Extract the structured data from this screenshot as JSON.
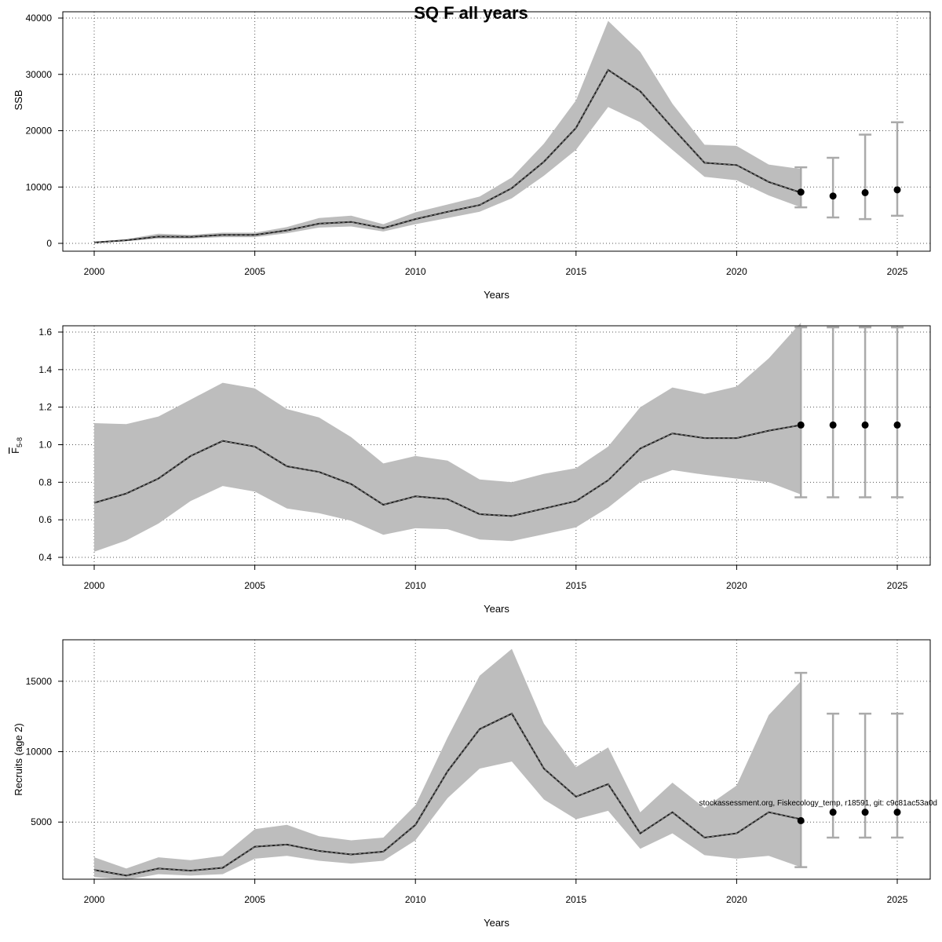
{
  "title": "SQ F all years",
  "footnote": "stockassessment.org, Fiskecology_temp, r18591, git: c9c81ac53a0d",
  "chart_data": [
    {
      "type": "line",
      "ylabel": "SSB",
      "xlabel": "Years",
      "xlim": [
        2000,
        2025
      ],
      "xticks": [
        2000,
        2005,
        2010,
        2015,
        2020,
        2025
      ],
      "ylim": [
        0,
        40000
      ],
      "yticks": [
        0,
        10000,
        20000,
        30000,
        40000
      ],
      "grid": true,
      "x": [
        2000,
        2001,
        2002,
        2003,
        2004,
        2005,
        2006,
        2007,
        2008,
        2009,
        2010,
        2011,
        2012,
        2013,
        2014,
        2015,
        2016,
        2017,
        2018,
        2019,
        2020,
        2021,
        2022
      ],
      "estimate": [
        150,
        550,
        1200,
        1150,
        1500,
        1500,
        2300,
        3500,
        3800,
        2700,
        4300,
        5600,
        6800,
        9800,
        14500,
        20500,
        30800,
        27000,
        20500,
        14300,
        13900,
        10900,
        9000
      ],
      "lower": [
        100,
        400,
        850,
        850,
        1100,
        1100,
        1800,
        2800,
        3000,
        2100,
        3400,
        4500,
        5600,
        8000,
        12000,
        16600,
        24200,
        21500,
        16600,
        11800,
        11200,
        8500,
        6400
      ],
      "upper": [
        250,
        750,
        1700,
        1500,
        1900,
        1900,
        2900,
        4500,
        4900,
        3400,
        5500,
        6900,
        8300,
        11700,
        17700,
        25400,
        39500,
        34000,
        24800,
        17500,
        17300,
        14000,
        13200
      ],
      "forecast": {
        "x": [
          2022,
          2023,
          2024,
          2025
        ],
        "median": [
          9100,
          8400,
          9000,
          9500
        ],
        "lower": [
          6400,
          4600,
          4300,
          4900
        ],
        "upper": [
          13500,
          15200,
          19300,
          21500
        ]
      }
    },
    {
      "type": "line",
      "ylabel_main": "F",
      "ylabel_sub": "5-8",
      "xlabel": "Years",
      "xlim": [
        2000,
        2025
      ],
      "xticks": [
        2000,
        2005,
        2010,
        2015,
        2020,
        2025
      ],
      "ylim": [
        0.4,
        1.6
      ],
      "yticks": [
        0.4,
        0.6,
        0.8,
        1.0,
        1.2,
        1.4,
        1.6
      ],
      "ytick_decimals": 1,
      "grid": true,
      "x": [
        2000,
        2001,
        2002,
        2003,
        2004,
        2005,
        2006,
        2007,
        2008,
        2009,
        2010,
        2011,
        2012,
        2013,
        2014,
        2015,
        2016,
        2017,
        2018,
        2019,
        2020,
        2021,
        2022
      ],
      "estimate": [
        0.69,
        0.74,
        0.82,
        0.94,
        1.02,
        0.99,
        0.885,
        0.855,
        0.79,
        0.68,
        0.725,
        0.71,
        0.63,
        0.62,
        0.66,
        0.7,
        0.81,
        0.98,
        1.06,
        1.035,
        1.035,
        1.075,
        1.105
      ],
      "lower": [
        0.43,
        0.49,
        0.58,
        0.7,
        0.78,
        0.75,
        0.66,
        0.635,
        0.595,
        0.52,
        0.555,
        0.55,
        0.495,
        0.487,
        0.523,
        0.56,
        0.665,
        0.8,
        0.865,
        0.84,
        0.82,
        0.8,
        0.735
      ],
      "upper": [
        1.115,
        1.11,
        1.15,
        1.24,
        1.33,
        1.3,
        1.19,
        1.145,
        1.04,
        0.9,
        0.94,
        0.915,
        0.815,
        0.8,
        0.845,
        0.875,
        0.99,
        1.2,
        1.305,
        1.27,
        1.31,
        1.46,
        1.65
      ],
      "forecast": {
        "x": [
          2022,
          2023,
          2024,
          2025
        ],
        "median": [
          1.105,
          1.105,
          1.105,
          1.105
        ],
        "lower": [
          0.72,
          0.72,
          0.72,
          0.72
        ],
        "upper": [
          1.625,
          1.625,
          1.625,
          1.625
        ]
      }
    },
    {
      "type": "line",
      "ylabel": "Recruits (age 2)",
      "xlabel": "Years",
      "xlim": [
        2000,
        2025
      ],
      "xticks": [
        2000,
        2005,
        2010,
        2015,
        2020,
        2025
      ],
      "ylim": [
        1500,
        17500
      ],
      "yticks": [
        5000,
        10000,
        15000
      ],
      "grid": true,
      "x": [
        2000,
        2001,
        2002,
        2003,
        2004,
        2005,
        2006,
        2007,
        2008,
        2009,
        2010,
        2011,
        2012,
        2013,
        2014,
        2015,
        2016,
        2017,
        2018,
        2019,
        2020,
        2021,
        2022
      ],
      "estimate": [
        1600,
        1200,
        1700,
        1550,
        1750,
        3250,
        3400,
        2950,
        2700,
        2900,
        4800,
        8600,
        11600,
        12700,
        8800,
        6800,
        7700,
        4200,
        5700,
        3900,
        4200,
        5700,
        5200
      ],
      "lower": [
        1100,
        900,
        1300,
        1200,
        1300,
        2400,
        2600,
        2250,
        2050,
        2250,
        3700,
        6700,
        8800,
        9300,
        6600,
        5200,
        5800,
        3100,
        4200,
        2650,
        2400,
        2600,
        1800
      ],
      "upper": [
        2500,
        1700,
        2500,
        2300,
        2600,
        4500,
        4800,
        4000,
        3700,
        3900,
        6200,
        11000,
        15400,
        17300,
        12000,
        8900,
        10300,
        5700,
        7800,
        6000,
        7600,
        12600,
        15000
      ],
      "forecast": {
        "x": [
          2022,
          2023,
          2024,
          2025
        ],
        "median": [
          5100,
          5700,
          5700,
          5700
        ],
        "lower": [
          1800,
          3900,
          3900,
          3900
        ],
        "upper": [
          15600,
          12700,
          12700,
          12700
        ]
      }
    }
  ]
}
